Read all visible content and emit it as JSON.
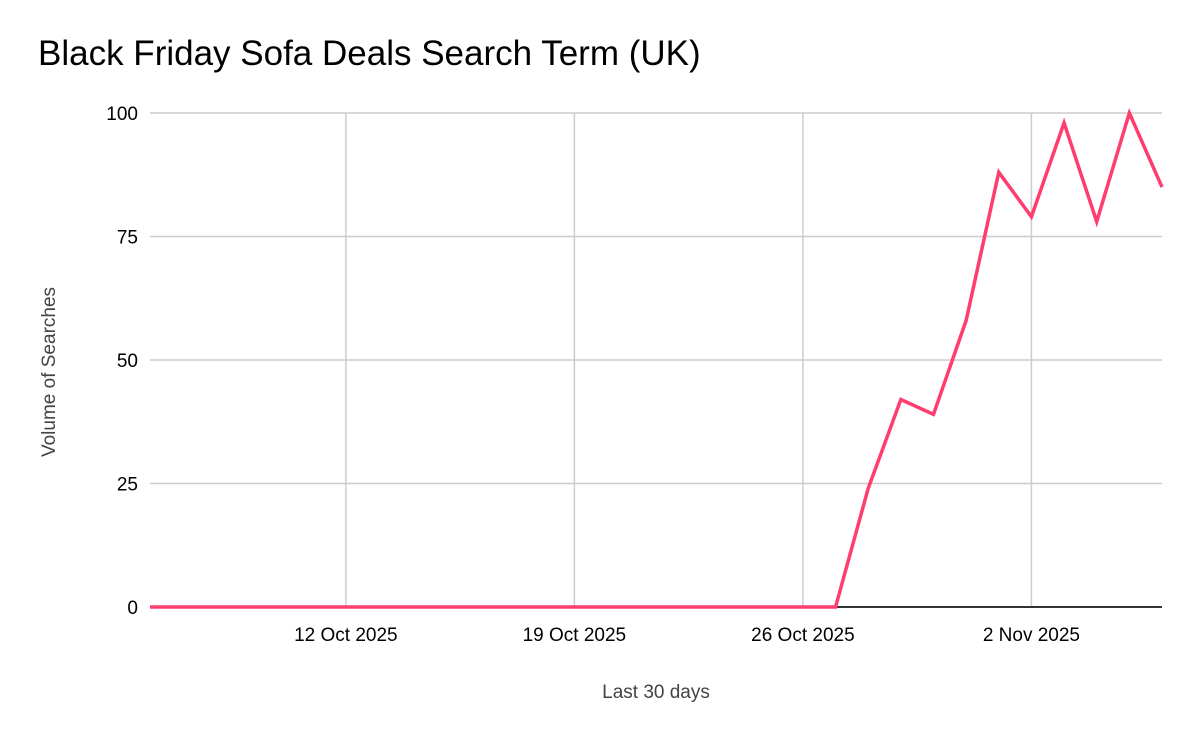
{
  "chart_data": {
    "type": "line",
    "title": "Black Friday Sofa Deals Search Term (UK)",
    "xlabel": "Last 30 days",
    "ylabel": "Volume of Searches",
    "ylim": [
      0,
      100
    ],
    "yticks": [
      "0",
      "25",
      "50",
      "75",
      "100"
    ],
    "xticks": [
      "12 Oct 2025",
      "19 Oct 2025",
      "26 Oct 2025",
      "2 Nov 2025"
    ],
    "xlim": [
      "2025-10-06",
      "2025-11-06"
    ],
    "grid": true,
    "line_color": "#ff3d6e",
    "x": [
      "2025-10-06",
      "2025-10-07",
      "2025-10-08",
      "2025-10-09",
      "2025-10-10",
      "2025-10-11",
      "2025-10-12",
      "2025-10-13",
      "2025-10-14",
      "2025-10-15",
      "2025-10-16",
      "2025-10-17",
      "2025-10-18",
      "2025-10-19",
      "2025-10-20",
      "2025-10-21",
      "2025-10-22",
      "2025-10-23",
      "2025-10-24",
      "2025-10-25",
      "2025-10-26",
      "2025-10-27",
      "2025-10-28",
      "2025-10-29",
      "2025-10-30",
      "2025-10-31",
      "2025-11-01",
      "2025-11-02",
      "2025-11-03",
      "2025-11-04",
      "2025-11-05",
      "2025-11-06"
    ],
    "values": [
      0,
      0,
      0,
      0,
      0,
      0,
      0,
      0,
      0,
      0,
      0,
      0,
      0,
      0,
      0,
      0,
      0,
      0,
      0,
      0,
      0,
      0,
      24,
      42,
      39,
      58,
      88,
      79,
      98,
      78,
      100,
      85
    ]
  }
}
